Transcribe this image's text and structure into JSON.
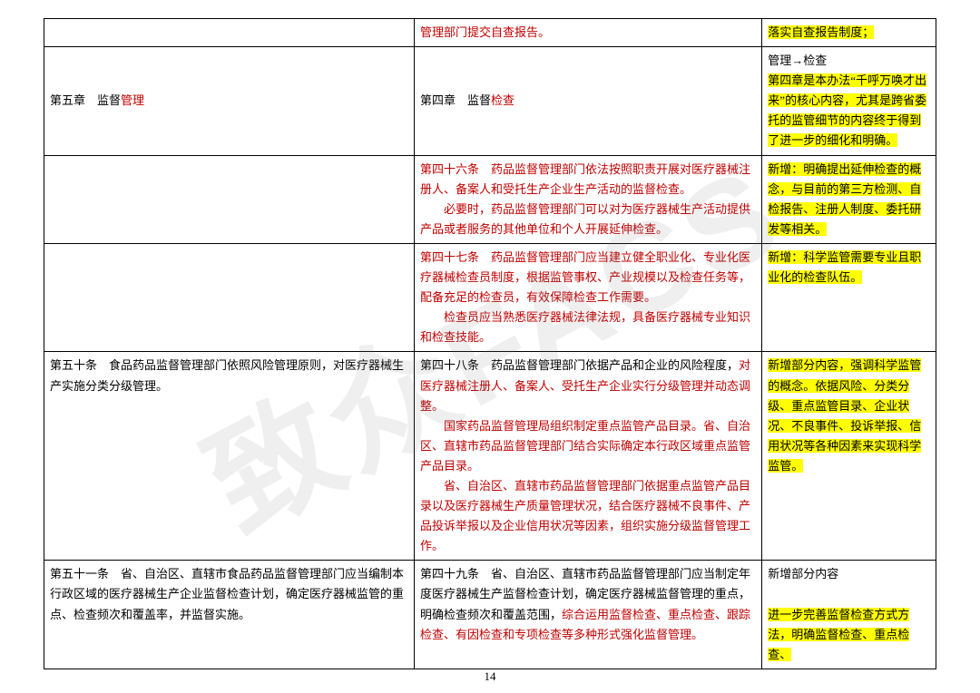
{
  "page_number": "14",
  "watermark_text": "致众FACS",
  "rows": [
    {
      "col1": [],
      "col2": [
        {
          "text": "管理部门提交自查报告。",
          "cls": "red"
        }
      ],
      "col3": [
        {
          "text": "落实自查报告制度；",
          "cls": "hl"
        }
      ]
    },
    {
      "col1": [
        {
          "text": "第五章　监督"
        },
        {
          "text": "管理",
          "cls": "red"
        }
      ],
      "col2": [
        {
          "text": "第四章　监督"
        },
        {
          "text": "检查",
          "cls": "red"
        }
      ],
      "col3": [
        {
          "text": "管理→检查",
          "br": true
        },
        {
          "text": "第四章是本办法“千呼万唤才出来”的核心内容，尤其是跨省委托的监管细节的内容终于得到了进一步的细化和明确。",
          "cls": "hl"
        }
      ]
    },
    {
      "col1": [],
      "col2": [
        {
          "text": "第四十六条　药品监督管理部门依法按照职责开展对医疗器械注册人、备案人和受托生产企业生产活动的监督检查。",
          "cls": "red",
          "br": true
        },
        {
          "text": "",
          "indent": true
        },
        {
          "text": "必要时，药品监督管理部门可以对为医疗器械生产活动提供产品或者服务的其他单位和个人开展延伸检查。",
          "cls": "red"
        }
      ],
      "col3": [
        {
          "text": "新增：明确提出延伸检查的概念，与目前的第三方检测、自检报告、注册人制度、委托研发等相关。",
          "cls": "hl"
        }
      ]
    },
    {
      "col1": [],
      "col2": [
        {
          "text": "第四十七条　药品监督管理部门应当建立健全职业化、专业化医疗器械检查员制度，根据监管事权、产业规模以及检查任务等，配备充足的检查员，有效保障检查工作需要。",
          "cls": "red",
          "br": true
        },
        {
          "text": "",
          "indent": true
        },
        {
          "text": "检查员应当熟悉医疗器械法律法规，具备医疗器械专业知识和检查技能。",
          "cls": "red"
        }
      ],
      "col3": [
        {
          "text": "新增：科学监管需要专业且职业化的检查队伍。",
          "cls": "hl"
        }
      ]
    },
    {
      "col1": [
        {
          "text": "第五十条　食品药品监督管理部门依照风险管理原则，对医疗器械生产实施分类分级管理。"
        }
      ],
      "col2": [
        {
          "text": "第四十八条　药品监督管理部门依据产品和企业的风险程度，"
        },
        {
          "text": "对医疗器械注册人、备案人、受托生产企业实行分级管理并动态调整。",
          "cls": "red",
          "br": true
        },
        {
          "text": "",
          "indent": true
        },
        {
          "text": "国家药品监督管理局组织制定重点监管产品目录。省、自治区、直辖市药品监督管理部门结合实际确定本行政区域重点监管产品目录。",
          "cls": "red",
          "br": true
        },
        {
          "text": "",
          "indent": true
        },
        {
          "text": "省、自治区、直辖市药品监督管理部门依据重点监管产品目录以及医疗器械生产质量管理状况，结合医疗器械不良事件、产品投诉举报以及企业信用状况等因素，组织实施分级监督管理工作。",
          "cls": "red"
        }
      ],
      "col3": [
        {
          "text": "新增部分内容，强调科学监管的概念。依据风险、分类分级、重点监管目录、企业状况、不良事件、投诉举报、信用状况等各种因素来实现科学监管。",
          "cls": "hl"
        }
      ]
    },
    {
      "col1": [
        {
          "text": "第五十一条　省、自治区、直辖市食品药品监督管理部门应当编制本行政区域的医疗器械生产企业监督检查计划，确定医疗器械监管的重点、检查频次和覆盖率，并监督实施。"
        }
      ],
      "col2": [
        {
          "text": "第四十九条　省、自治区、直辖市药品监督管理部门应当制定年度医疗器械生产监督检查计划，确定医疗器械监督管理的重点，明确检查频次和覆盖范围，"
        },
        {
          "text": "综合运用监督检查、重点检查、跟踪检查、有因检查和专项检查等多种形式强化监督管理。",
          "cls": "red"
        }
      ],
      "col3": [
        {
          "text": "新增部分内容",
          "br": true
        },
        {
          "text": "",
          "br": true
        },
        {
          "text": "进一步完善监督检查方式方法，明确监督检查、重点检查、",
          "cls": "hl"
        }
      ]
    }
  ]
}
